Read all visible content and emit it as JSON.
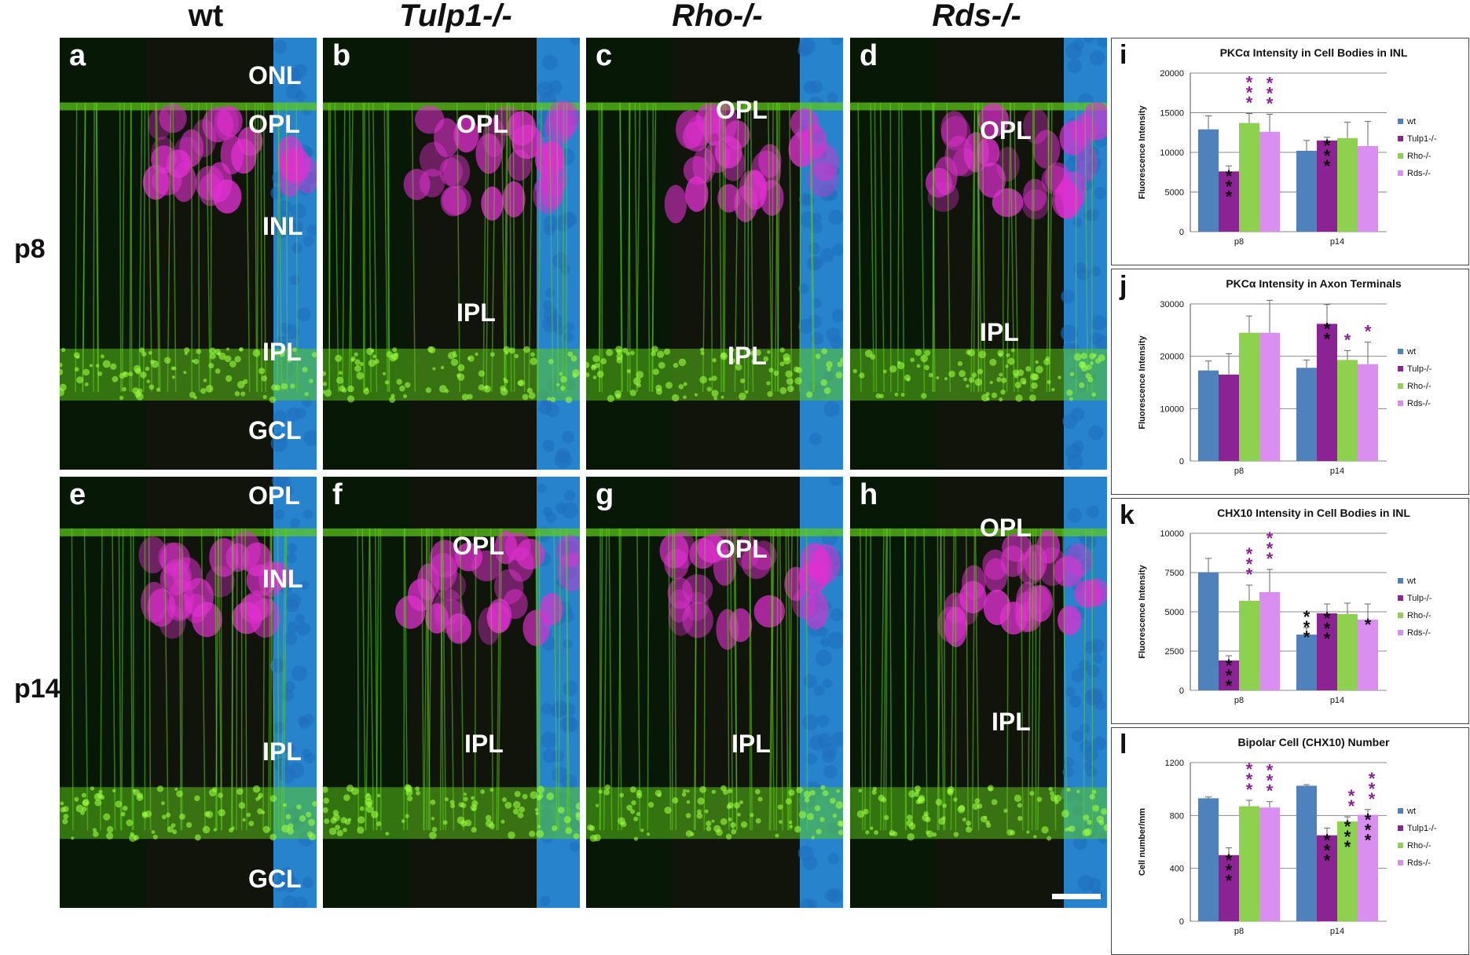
{
  "columns": [
    "wt",
    "Tulp1-/-",
    "Rho-/-",
    "Rds-/-"
  ],
  "rows": [
    "p8",
    "p14"
  ],
  "panels": [
    {
      "id": "a",
      "layers": [
        "ONL",
        "OPL",
        "INL",
        "IPL",
        "GCL"
      ]
    },
    {
      "id": "b",
      "layers": [
        "OPL",
        "IPL"
      ]
    },
    {
      "id": "c",
      "layers": [
        "OPL",
        "IPL"
      ]
    },
    {
      "id": "d",
      "layers": [
        "OPL",
        "IPL"
      ]
    },
    {
      "id": "e",
      "layers": [
        "OPL",
        "INL",
        "IPL",
        "GCL"
      ]
    },
    {
      "id": "f",
      "layers": [
        "OPL",
        "IPL"
      ]
    },
    {
      "id": "g",
      "layers": [
        "OPL",
        "IPL"
      ]
    },
    {
      "id": "h",
      "layers": [
        "OPL",
        "IPL"
      ]
    }
  ],
  "colors": {
    "wt": "#4f81bd",
    "mut1": "#8b2394",
    "mut2": "#8ed14e",
    "mut3": "#d98ef0",
    "sig_black": "#111111",
    "sig_purple": "#8b2394",
    "stain_green": "#5fcf1a",
    "stain_magenta": "#e030d0",
    "stain_blue": "#2a8fe0"
  },
  "chart_data": [
    {
      "letter": "i",
      "type": "bar",
      "title": "PKCα Intensity in Cell Bodies in INL",
      "ylabel": "Fluorescence Intensity",
      "categories": [
        "p8",
        "p14"
      ],
      "ylim": [
        0,
        20000
      ],
      "yticks": [
        "0",
        "5000",
        "10000",
        "15000",
        "20000"
      ],
      "series": [
        {
          "name": "wt",
          "values": [
            12900,
            10200
          ],
          "errors": [
            1700,
            1300
          ]
        },
        {
          "name": "Tulp1-/-",
          "values": [
            7600,
            11500
          ],
          "errors": [
            700,
            400
          ]
        },
        {
          "name": "Rho-/-",
          "values": [
            13700,
            11800
          ],
          "errors": [
            1200,
            2000
          ]
        },
        {
          "name": "Rds-/-",
          "values": [
            12600,
            10800
          ],
          "errors": [
            2200,
            3100
          ]
        }
      ],
      "marks": [
        {
          "series": 1,
          "group": 0,
          "text": "***",
          "color": "black"
        },
        {
          "series": 2,
          "group": 0,
          "text": "***",
          "color": "purple"
        },
        {
          "series": 3,
          "group": 0,
          "text": "***",
          "color": "purple"
        },
        {
          "series": 1,
          "group": 1,
          "text": "***",
          "color": "black"
        }
      ]
    },
    {
      "letter": "j",
      "type": "bar",
      "title": "PKCα Intensity in Axon Terminals",
      "ylabel": "Fluorescence Intensity",
      "categories": [
        "p8",
        "p14"
      ],
      "ylim": [
        0,
        30000
      ],
      "yticks": [
        "0",
        "10000",
        "20000",
        "30000"
      ],
      "series": [
        {
          "name": "wt",
          "values": [
            17300,
            17800
          ],
          "errors": [
            1800,
            1500
          ]
        },
        {
          "name": "Tulp-/-",
          "values": [
            16500,
            26200
          ],
          "errors": [
            4000,
            3700
          ]
        },
        {
          "name": "Rho-/-",
          "values": [
            24500,
            19300
          ],
          "errors": [
            3200,
            1800
          ]
        },
        {
          "name": "Rds-/-",
          "values": [
            24500,
            18500
          ],
          "errors": [
            6200,
            4200
          ]
        }
      ],
      "marks": [
        {
          "series": 1,
          "group": 1,
          "text": "**",
          "color": "black"
        },
        {
          "series": 2,
          "group": 1,
          "text": "*",
          "color": "purple"
        },
        {
          "series": 3,
          "group": 1,
          "text": "*",
          "color": "purple"
        }
      ]
    },
    {
      "letter": "k",
      "type": "bar",
      "title": "CHX10 Intensity in Cell Bodies in INL",
      "ylabel": "Fluorescence Intensity",
      "categories": [
        "p8",
        "p14"
      ],
      "ylim": [
        0,
        10000
      ],
      "yticks": [
        "0",
        "2500",
        "5000",
        "7500",
        "10000"
      ],
      "series": [
        {
          "name": "wt",
          "values": [
            7500,
            3550
          ],
          "errors": [
            900,
            450
          ]
        },
        {
          "name": "Tulp-/-",
          "values": [
            1900,
            4900
          ],
          "errors": [
            300,
            600
          ]
        },
        {
          "name": "Rho-/-",
          "values": [
            5700,
            4850
          ],
          "errors": [
            1000,
            700
          ]
        },
        {
          "name": "Rds-/-",
          "values": [
            6250,
            4500
          ],
          "errors": [
            1450,
            1000
          ]
        }
      ],
      "marks": [
        {
          "series": 1,
          "group": 0,
          "text": "***",
          "color": "black"
        },
        {
          "series": 2,
          "group": 0,
          "text": "***",
          "color": "purple"
        },
        {
          "series": 3,
          "group": 0,
          "text": "***",
          "color": "purple"
        },
        {
          "series": 0,
          "group": 1,
          "text": "***",
          "color": "black"
        },
        {
          "series": 1,
          "group": 1,
          "text": "***",
          "color": "black"
        },
        {
          "series": 3,
          "group": 1,
          "text": "*",
          "color": "black"
        }
      ]
    },
    {
      "letter": "l",
      "type": "bar",
      "title": "Bipolar Cell (CHX10) Number",
      "ylabel": "Cell number/mm",
      "categories": [
        "p8",
        "p14"
      ],
      "ylim": [
        0,
        1200
      ],
      "yticks": [
        "0",
        "400",
        "800",
        "1200"
      ],
      "series": [
        {
          "name": "wt",
          "values": [
            930,
            1025
          ],
          "errors": [
            10,
            8
          ]
        },
        {
          "name": "Tulp1-/-",
          "values": [
            500,
            650
          ],
          "errors": [
            55,
            55
          ]
        },
        {
          "name": "Rho-/-",
          "values": [
            870,
            755
          ],
          "errors": [
            45,
            35
          ]
        },
        {
          "name": "Rds-/-",
          "values": [
            860,
            805
          ],
          "errors": [
            45,
            40
          ]
        }
      ],
      "marks": [
        {
          "series": 1,
          "group": 0,
          "text": "***",
          "color": "black"
        },
        {
          "series": 2,
          "group": 0,
          "text": "***",
          "color": "purple"
        },
        {
          "series": 3,
          "group": 0,
          "text": "***",
          "color": "purple"
        },
        {
          "series": 1,
          "group": 1,
          "text": "***",
          "color": "black"
        },
        {
          "series": 2,
          "group": 1,
          "text": "***",
          "color": "black"
        },
        {
          "series": 2,
          "group": 1,
          "text": "**",
          "color": "purple",
          "offset": 1
        },
        {
          "series": 3,
          "group": 1,
          "text": "***",
          "color": "black"
        },
        {
          "series": 3,
          "group": 1,
          "text": "***",
          "color": "purple",
          "offset": 1
        }
      ]
    }
  ]
}
